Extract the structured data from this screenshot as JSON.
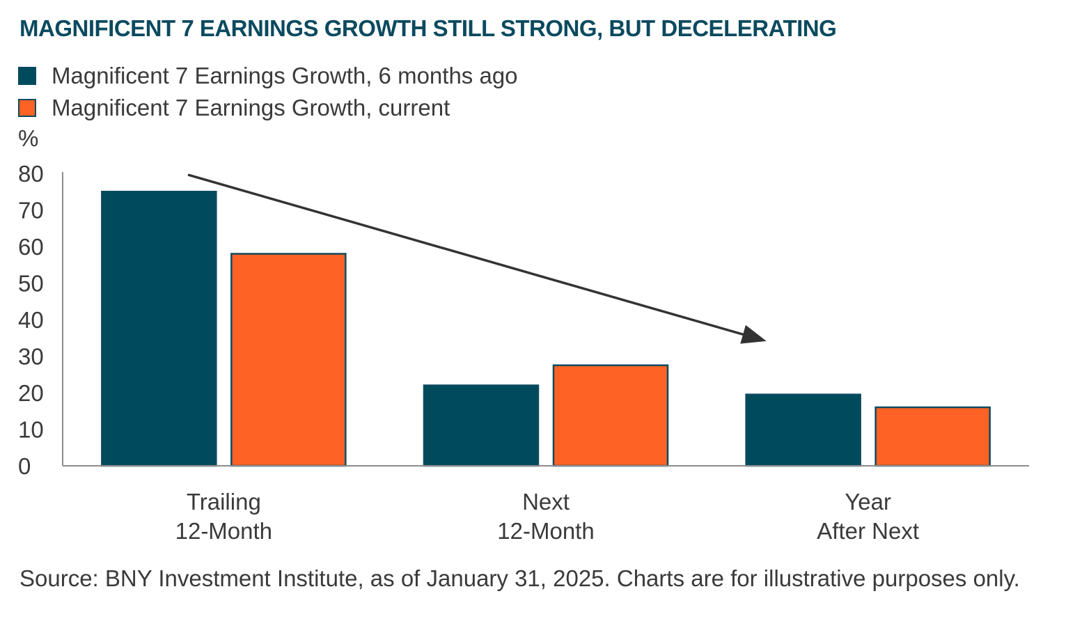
{
  "title": "MAGNIFICENT 7 EARNINGS GROWTH STILL STRONG, BUT DECELERATING",
  "legend": [
    {
      "label": "Magnificent 7 Earnings Growth, 6 months ago",
      "color": "#004a5e"
    },
    {
      "label": "Magnificent 7 Earnings Growth, current",
      "color": "#ff6224"
    }
  ],
  "unit_label": "%",
  "source": "Source: BNY Investment Institute, as of January 31, 2025. Charts are for illustrative purposes only.",
  "chart_data": {
    "type": "bar",
    "categories": [
      [
        "Trailing",
        "12-Month"
      ],
      [
        "Next",
        "12-Month"
      ],
      [
        "Year",
        "After Next"
      ]
    ],
    "series": [
      {
        "name": "Magnificent 7 Earnings Growth, 6 months ago",
        "values": [
          75,
          22,
          19.5
        ],
        "color": "#004a5e"
      },
      {
        "name": "Magnificent 7 Earnings Growth, current",
        "values": [
          58,
          27.5,
          16
        ],
        "color": "#ff6224"
      }
    ],
    "ylabel": "%",
    "ylim": [
      0,
      80
    ],
    "yticks": [
      0,
      10,
      20,
      30,
      40,
      50,
      60,
      70,
      80
    ],
    "annotation": "downward trend arrow",
    "grid": false,
    "legend_position": "top-left"
  }
}
